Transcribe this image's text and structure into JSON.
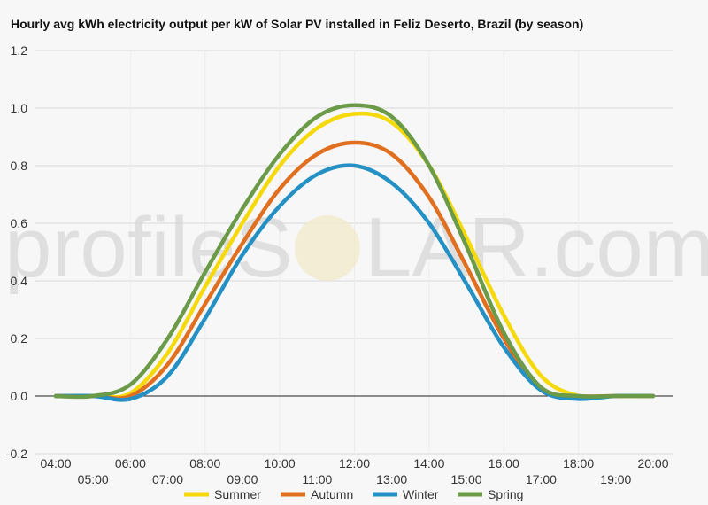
{
  "watermark": {
    "left": "profileS",
    "right": "LAR.com"
  },
  "chart_data": {
    "type": "line",
    "title": "Hourly avg kWh electricity output per kW of Solar PV installed in Feliz Deserto, Brazil (by season)",
    "xlabel": "",
    "ylabel": "",
    "x_tick_labels": [
      "04:00",
      "05:00",
      "06:00",
      "07:00",
      "08:00",
      "09:00",
      "10:00",
      "11:00",
      "12:00",
      "13:00",
      "14:00",
      "15:00",
      "16:00",
      "17:00",
      "18:00",
      "19:00",
      "20:00"
    ],
    "y_ticks": [
      "-0.2",
      "0.0",
      "0.2",
      "0.4",
      "0.6",
      "0.8",
      "1.0",
      "1.2"
    ],
    "ylim": [
      -0.2,
      1.2
    ],
    "grid": true,
    "legend_position": "bottom",
    "x": [
      4,
      5,
      6,
      7,
      8,
      9,
      10,
      11,
      12,
      13,
      14,
      15,
      16,
      17,
      18,
      19,
      20
    ],
    "series": [
      {
        "name": "Summer",
        "color": "#f5d90a",
        "values": [
          0,
          0,
          0.01,
          0.15,
          0.38,
          0.6,
          0.8,
          0.93,
          0.98,
          0.95,
          0.8,
          0.55,
          0.28,
          0.07,
          0,
          0,
          0
        ]
      },
      {
        "name": "Autumn",
        "color": "#e07020",
        "values": [
          0,
          0,
          0,
          0.11,
          0.32,
          0.53,
          0.72,
          0.84,
          0.88,
          0.84,
          0.69,
          0.45,
          0.2,
          0.02,
          0,
          0,
          0
        ]
      },
      {
        "name": "Winter",
        "color": "#2490c3",
        "values": [
          0,
          0,
          -0.01,
          0.07,
          0.27,
          0.49,
          0.66,
          0.77,
          0.8,
          0.74,
          0.6,
          0.39,
          0.17,
          0.02,
          -0.01,
          0,
          0
        ]
      },
      {
        "name": "Spring",
        "color": "#6b9a48",
        "values": [
          0,
          0,
          0.04,
          0.2,
          0.43,
          0.65,
          0.84,
          0.97,
          1.01,
          0.97,
          0.8,
          0.52,
          0.22,
          0.03,
          0,
          0,
          0
        ]
      }
    ]
  }
}
